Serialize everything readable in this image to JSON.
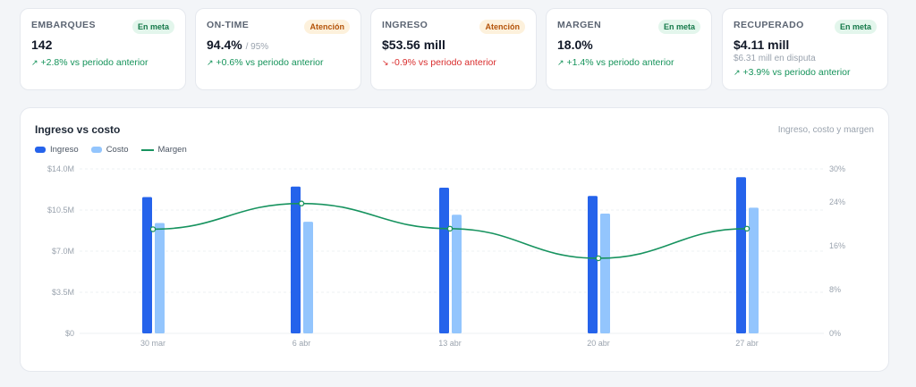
{
  "kpis": [
    {
      "label": "EMBARQUES",
      "badge": "En meta",
      "badge_type": "ok",
      "value": "142",
      "target": "",
      "sub": "",
      "delta_icon": "trend-up-icon",
      "arrow": "↗",
      "delta": "+2.8% vs periodo anterior",
      "direction": "up"
    },
    {
      "label": "ON-TIME",
      "badge": "Atención",
      "badge_type": "warn",
      "value": "94.4%",
      "target": "/ 95%",
      "sub": "",
      "delta_icon": "trend-up-icon",
      "arrow": "↗",
      "delta": "+0.6% vs periodo anterior",
      "direction": "up"
    },
    {
      "label": "INGRESO",
      "badge": "Atención",
      "badge_type": "warn",
      "value": "$53.56 mill",
      "target": "",
      "sub": "",
      "delta_icon": "trend-down-icon",
      "arrow": "↘",
      "delta": "-0.9% vs periodo anterior",
      "direction": "down"
    },
    {
      "label": "MARGEN",
      "badge": "En meta",
      "badge_type": "ok",
      "value": "18.0%",
      "target": "",
      "sub": "",
      "delta_icon": "trend-up-icon",
      "arrow": "↗",
      "delta": "+1.4% vs periodo anterior",
      "direction": "up"
    },
    {
      "label": "RECUPERADO",
      "badge": "En meta",
      "badge_type": "ok",
      "value": "$4.11 mill",
      "target": "",
      "sub": "$6.31 mill en disputa",
      "delta_icon": "trend-up-icon",
      "arrow": "↗",
      "delta": "+3.9% vs periodo anterior",
      "direction": "up"
    }
  ],
  "panel": {
    "title": "Ingreso vs costo",
    "subtitle": "Ingreso, costo y margen"
  },
  "colors": {
    "ingreso": "#2563eb",
    "costo": "#93c5fd",
    "margen": "#17935f",
    "grid": "#eef0f3"
  },
  "chart_data": {
    "type": "bar",
    "categories": [
      "30 mar",
      "6 abr",
      "13 abr",
      "20 abr",
      "27 abr"
    ],
    "series": [
      {
        "name": "Ingreso",
        "type": "bar",
        "axis": "left",
        "values": [
          11.6,
          12.5,
          12.4,
          11.7,
          13.3
        ]
      },
      {
        "name": "Costo",
        "type": "bar",
        "axis": "left",
        "values": [
          9.4,
          9.5,
          10.1,
          10.2,
          10.7
        ]
      },
      {
        "name": "Margen",
        "type": "line",
        "axis": "right",
        "values": [
          19.0,
          23.7,
          19.1,
          13.7,
          19.1
        ]
      }
    ],
    "y_left": {
      "min": 0,
      "max": 14.0,
      "ticks": [
        "$0",
        "$3.5M",
        "$7.0M",
        "$10.5M",
        "$14.0M"
      ]
    },
    "y_right": {
      "min": 0,
      "max": 30,
      "ticks": [
        "0%",
        "8%",
        "16%",
        "24%",
        "30%"
      ],
      "tick_values": [
        0,
        8,
        16,
        24,
        30
      ]
    },
    "legend_position": "top-left",
    "grid": true
  }
}
